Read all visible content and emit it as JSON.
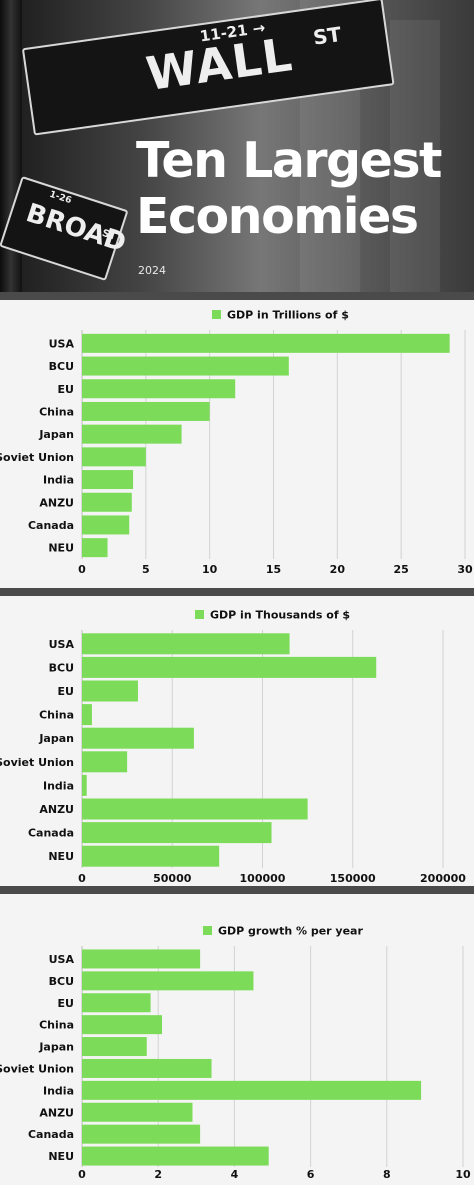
{
  "hero": {
    "title_line1": "Ten Largest",
    "title_line2": "Economies",
    "year": "2024",
    "sign_wall_number": "11-21 →",
    "sign_wall_text": "WALL",
    "sign_wall_suffix": "ST",
    "sign_broad_number": "1-26",
    "sign_broad_text": "BROAD",
    "sign_broad_suffix": "ST"
  },
  "colors": {
    "bar": "#7ddb5a",
    "grid": "#d2d2d2",
    "text": "#111111",
    "divider": "#4a4a4a"
  },
  "chart_data": [
    {
      "type": "bar",
      "orientation": "horizontal",
      "legend": "GDP in Trillions of $",
      "legend_position": "top",
      "categories": [
        "USA",
        "BCU",
        "EU",
        "China",
        "Japan",
        "Soviet Union",
        "India",
        "ANZU",
        "Canada",
        "NEU"
      ],
      "values": [
        28.8,
        16.2,
        12.0,
        10.0,
        7.8,
        5.0,
        4.0,
        3.9,
        3.7,
        2.0
      ],
      "xlim": [
        0,
        30
      ],
      "ticks": [
        "0",
        "5",
        "10",
        "15",
        "20",
        "25",
        "30"
      ],
      "grid": true
    },
    {
      "type": "bar",
      "orientation": "horizontal",
      "legend": "GDP in Thousands of $",
      "legend_position": "top",
      "categories": [
        "USA",
        "BCU",
        "EU",
        "China",
        "Japan",
        "Soviet Union",
        "India",
        "ANZU",
        "Canada",
        "NEU"
      ],
      "values": [
        115000,
        163000,
        31000,
        5500,
        62000,
        25000,
        2600,
        125000,
        105000,
        76000
      ],
      "xlim": [
        0,
        200000
      ],
      "ticks": [
        "0",
        "50000",
        "100000",
        "150000",
        "200000"
      ],
      "grid": true
    },
    {
      "type": "bar",
      "orientation": "horizontal",
      "legend": "GDP growth % per year",
      "legend_position": "top",
      "categories": [
        "USA",
        "BCU",
        "EU",
        "China",
        "Japan",
        "Soviet Union",
        "India",
        "ANZU",
        "Canada",
        "NEU"
      ],
      "values": [
        3.1,
        4.5,
        1.8,
        2.1,
        1.7,
        3.4,
        8.9,
        2.9,
        3.1,
        4.9
      ],
      "xlim": [
        0,
        10
      ],
      "ticks": [
        "0",
        "2",
        "4",
        "6",
        "8",
        "10"
      ],
      "grid": true
    }
  ]
}
